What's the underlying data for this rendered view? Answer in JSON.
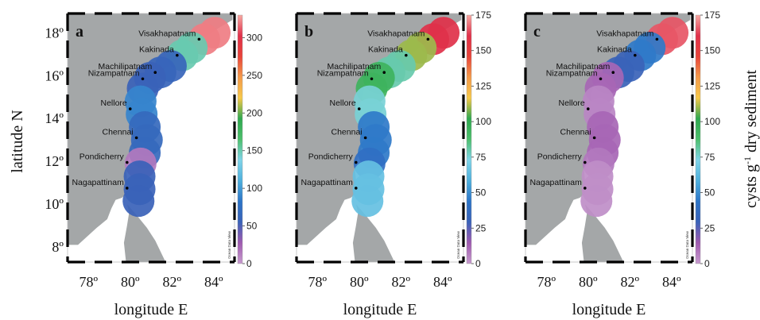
{
  "figure": {
    "ylabel": "latitude N",
    "xlabel": "longitude E",
    "colorbar_label": "cysts g",
    "colorbar_label_sup": "-1",
    "colorbar_label_rest": " dry sediment",
    "credit": "Ocean Data View",
    "colors": {
      "land": "#a4a7a8",
      "sea": "#ffffff",
      "frame": "#000000"
    },
    "colormap": [
      "#c79bce",
      "#a05bb0",
      "#3a62b8",
      "#2c74c7",
      "#4fb0dd",
      "#7fd4e8",
      "#4dbf6c",
      "#2fa84f",
      "#f7c94a",
      "#f39a4a",
      "#e8443a",
      "#e0304a",
      "#f7a9a3"
    ]
  },
  "chart_data": [
    {
      "type": "heatmap",
      "panel": "a",
      "title": "",
      "xlabel": "longitude E",
      "ylabel": "latitude N",
      "xlim": [
        77,
        85
      ],
      "ylim": [
        7.3,
        18.9
      ],
      "x_ticks": [
        "78º",
        "80º",
        "82º",
        "84º"
      ],
      "y_ticks": [
        "8º",
        "10º",
        "12º",
        "14º",
        "16º",
        "18º"
      ],
      "colorbar": {
        "min": 0,
        "max": 330,
        "ticks": [
          "0",
          "50",
          "100",
          "150",
          "200",
          "250",
          "300"
        ],
        "tick_values": [
          0,
          50,
          100,
          150,
          200,
          250,
          300
        ]
      },
      "stations": [
        {
          "name": "Visakhapatnam",
          "lon": 83.3,
          "lat": 17.7,
          "value": 320
        },
        {
          "name": "Kakinada",
          "lon": 82.25,
          "lat": 16.95,
          "value": 150
        },
        {
          "name": "Machilipatnam",
          "lon": 81.2,
          "lat": 16.15,
          "value": 60
        },
        {
          "name": "Nizampatnam",
          "lon": 80.6,
          "lat": 15.85,
          "value": 55
        },
        {
          "name": "Nellore",
          "lon": 80.0,
          "lat": 14.45,
          "value": 90
        },
        {
          "name": "Chennai",
          "lon": 80.3,
          "lat": 13.1,
          "value": 65
        },
        {
          "name": "Pondicherry",
          "lon": 79.85,
          "lat": 11.95,
          "value": 15
        },
        {
          "name": "Nagapattinam",
          "lon": 79.85,
          "lat": 10.75,
          "value": 55
        }
      ]
    },
    {
      "type": "heatmap",
      "panel": "b",
      "title": "",
      "xlabel": "longitude E",
      "ylabel": "",
      "xlim": [
        77,
        85
      ],
      "ylim": [
        7.3,
        18.9
      ],
      "x_ticks": [
        "78º",
        "80º",
        "82º",
        "84º"
      ],
      "y_ticks": [],
      "colorbar": {
        "min": 0,
        "max": 175,
        "ticks": [
          "0",
          "25",
          "50",
          "75",
          "100",
          "125",
          "150",
          "175"
        ],
        "tick_values": [
          0,
          25,
          50,
          75,
          100,
          125,
          150,
          175
        ]
      },
      "stations": [
        {
          "name": "Visakhapatnam",
          "lon": 83.3,
          "lat": 17.7,
          "value": 160
        },
        {
          "name": "Kakinada",
          "lon": 82.25,
          "lat": 16.95,
          "value": 110
        },
        {
          "name": "Machilipatnam",
          "lon": 81.2,
          "lat": 16.15,
          "value": 80
        },
        {
          "name": "Nizampatnam",
          "lon": 80.6,
          "lat": 15.85,
          "value": 95
        },
        {
          "name": "Nellore",
          "lon": 80.0,
          "lat": 14.45,
          "value": 75
        },
        {
          "name": "Chennai",
          "lon": 80.3,
          "lat": 13.1,
          "value": 45
        },
        {
          "name": "Pondicherry",
          "lon": 79.85,
          "lat": 11.95,
          "value": 40
        },
        {
          "name": "Nagapattinam",
          "lon": 79.85,
          "lat": 10.75,
          "value": 65
        }
      ]
    },
    {
      "type": "heatmap",
      "panel": "c",
      "title": "",
      "xlabel": "longitude E",
      "ylabel": "",
      "xlim": [
        77,
        85
      ],
      "ylim": [
        7.3,
        18.9
      ],
      "x_ticks": [
        "78º",
        "80º",
        "82º",
        "84º"
      ],
      "y_ticks": [],
      "colorbar": {
        "min": 0,
        "max": 175,
        "ticks": [
          "0",
          "25",
          "50",
          "75",
          "100",
          "125",
          "150",
          "175"
        ],
        "tick_values": [
          0,
          25,
          50,
          75,
          100,
          125,
          150,
          175
        ]
      },
      "stations": [
        {
          "name": "Visakhapatnam",
          "lon": 83.3,
          "lat": 17.7,
          "value": 165
        },
        {
          "name": "Kakinada",
          "lon": 82.25,
          "lat": 16.95,
          "value": 45
        },
        {
          "name": "Machilipatnam",
          "lon": 81.2,
          "lat": 16.15,
          "value": 30
        },
        {
          "name": "Nizampatnam",
          "lon": 80.6,
          "lat": 15.85,
          "value": 12
        },
        {
          "name": "Nellore",
          "lon": 80.0,
          "lat": 14.45,
          "value": 5
        },
        {
          "name": "Chennai",
          "lon": 80.3,
          "lat": 13.1,
          "value": 12
        },
        {
          "name": "Pondicherry",
          "lon": 79.85,
          "lat": 11.95,
          "value": 8
        },
        {
          "name": "Nagapattinam",
          "lon": 79.85,
          "lat": 10.75,
          "value": 3
        }
      ]
    }
  ]
}
